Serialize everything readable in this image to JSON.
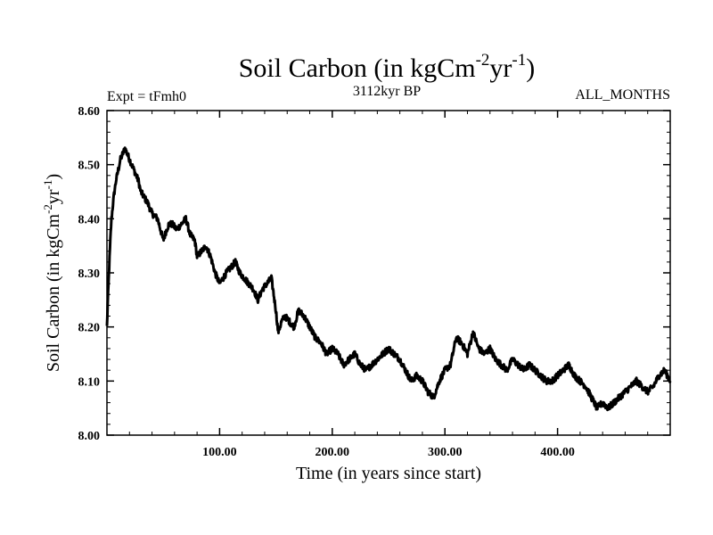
{
  "chart_data": {
    "type": "line",
    "title": {
      "prefix": "Soil Carbon (in kgCm",
      "exp1": "-2",
      "mid": "yr",
      "exp2": "-1",
      "suffix": ")"
    },
    "subtitle_left": "Expt = tFmh0",
    "subtitle_center": "3112kyr BP",
    "subtitle_right": "ALL_MONTHS",
    "xlabel": "Time (in years since start)",
    "ylabel": {
      "prefix": "Soil Carbon (in kgCm",
      "exp1": "-2",
      "mid": "yr",
      "exp2": "-1",
      "suffix": ")"
    },
    "xlim": [
      0,
      500
    ],
    "ylim": [
      8.0,
      8.6
    ],
    "x_ticks": [
      100,
      200,
      300,
      400
    ],
    "x_tick_labels": [
      "100.00",
      "200.00",
      "300.00",
      "400.00"
    ],
    "y_ticks": [
      8.0,
      8.1,
      8.2,
      8.3,
      8.4,
      8.5,
      8.6
    ],
    "y_tick_labels": [
      "8.00",
      "8.10",
      "8.20",
      "8.30",
      "8.40",
      "8.50",
      "8.60"
    ],
    "line_color": "#000000",
    "series": [
      {
        "name": "Soil Carbon",
        "x": [
          0,
          1,
          2,
          3,
          4,
          6,
          8,
          10,
          12,
          14,
          16,
          18,
          20,
          22,
          24,
          26,
          28,
          30,
          33,
          36,
          40,
          45,
          50,
          53,
          55,
          58,
          62,
          66,
          70,
          74,
          78,
          80,
          84,
          88,
          92,
          96,
          100,
          103,
          106,
          110,
          114,
          118,
          122,
          126,
          130,
          134,
          138,
          142,
          146,
          150,
          152,
          155,
          158,
          162,
          166,
          170,
          175,
          180,
          185,
          190,
          195,
          200,
          205,
          210,
          215,
          220,
          225,
          230,
          235,
          240,
          245,
          250,
          255,
          260,
          265,
          270,
          275,
          280,
          285,
          290,
          295,
          300,
          305,
          310,
          315,
          320,
          325,
          330,
          335,
          340,
          345,
          350,
          355,
          360,
          365,
          370,
          375,
          380,
          385,
          390,
          395,
          400,
          405,
          410,
          415,
          420,
          425,
          430,
          435,
          440,
          445,
          450,
          455,
          460,
          465,
          470,
          475,
          480,
          485,
          490,
          495,
          500
        ],
        "y": [
          8.2,
          8.26,
          8.31,
          8.36,
          8.4,
          8.44,
          8.47,
          8.49,
          8.51,
          8.52,
          8.53,
          8.52,
          8.51,
          8.5,
          8.49,
          8.48,
          8.47,
          8.45,
          8.44,
          8.43,
          8.41,
          8.4,
          8.36,
          8.38,
          8.39,
          8.39,
          8.38,
          8.39,
          8.4,
          8.37,
          8.36,
          8.33,
          8.34,
          8.35,
          8.33,
          8.3,
          8.28,
          8.29,
          8.3,
          8.31,
          8.32,
          8.3,
          8.29,
          8.28,
          8.27,
          8.25,
          8.27,
          8.28,
          8.29,
          8.23,
          8.19,
          8.21,
          8.22,
          8.21,
          8.2,
          8.23,
          8.22,
          8.2,
          8.18,
          8.17,
          8.15,
          8.16,
          8.15,
          8.13,
          8.14,
          8.15,
          8.13,
          8.12,
          8.13,
          8.14,
          8.15,
          8.16,
          8.15,
          8.14,
          8.12,
          8.1,
          8.11,
          8.1,
          8.08,
          8.07,
          8.1,
          8.12,
          8.13,
          8.18,
          8.17,
          8.15,
          8.19,
          8.16,
          8.15,
          8.16,
          8.14,
          8.13,
          8.12,
          8.14,
          8.13,
          8.12,
          8.13,
          8.12,
          8.11,
          8.1,
          8.1,
          8.11,
          8.12,
          8.13,
          8.11,
          8.1,
          8.09,
          8.07,
          8.05,
          8.06,
          8.05,
          8.06,
          8.07,
          8.08,
          8.09,
          8.1,
          8.09,
          8.08,
          8.09,
          8.11,
          8.12,
          8.1
        ]
      }
    ]
  }
}
